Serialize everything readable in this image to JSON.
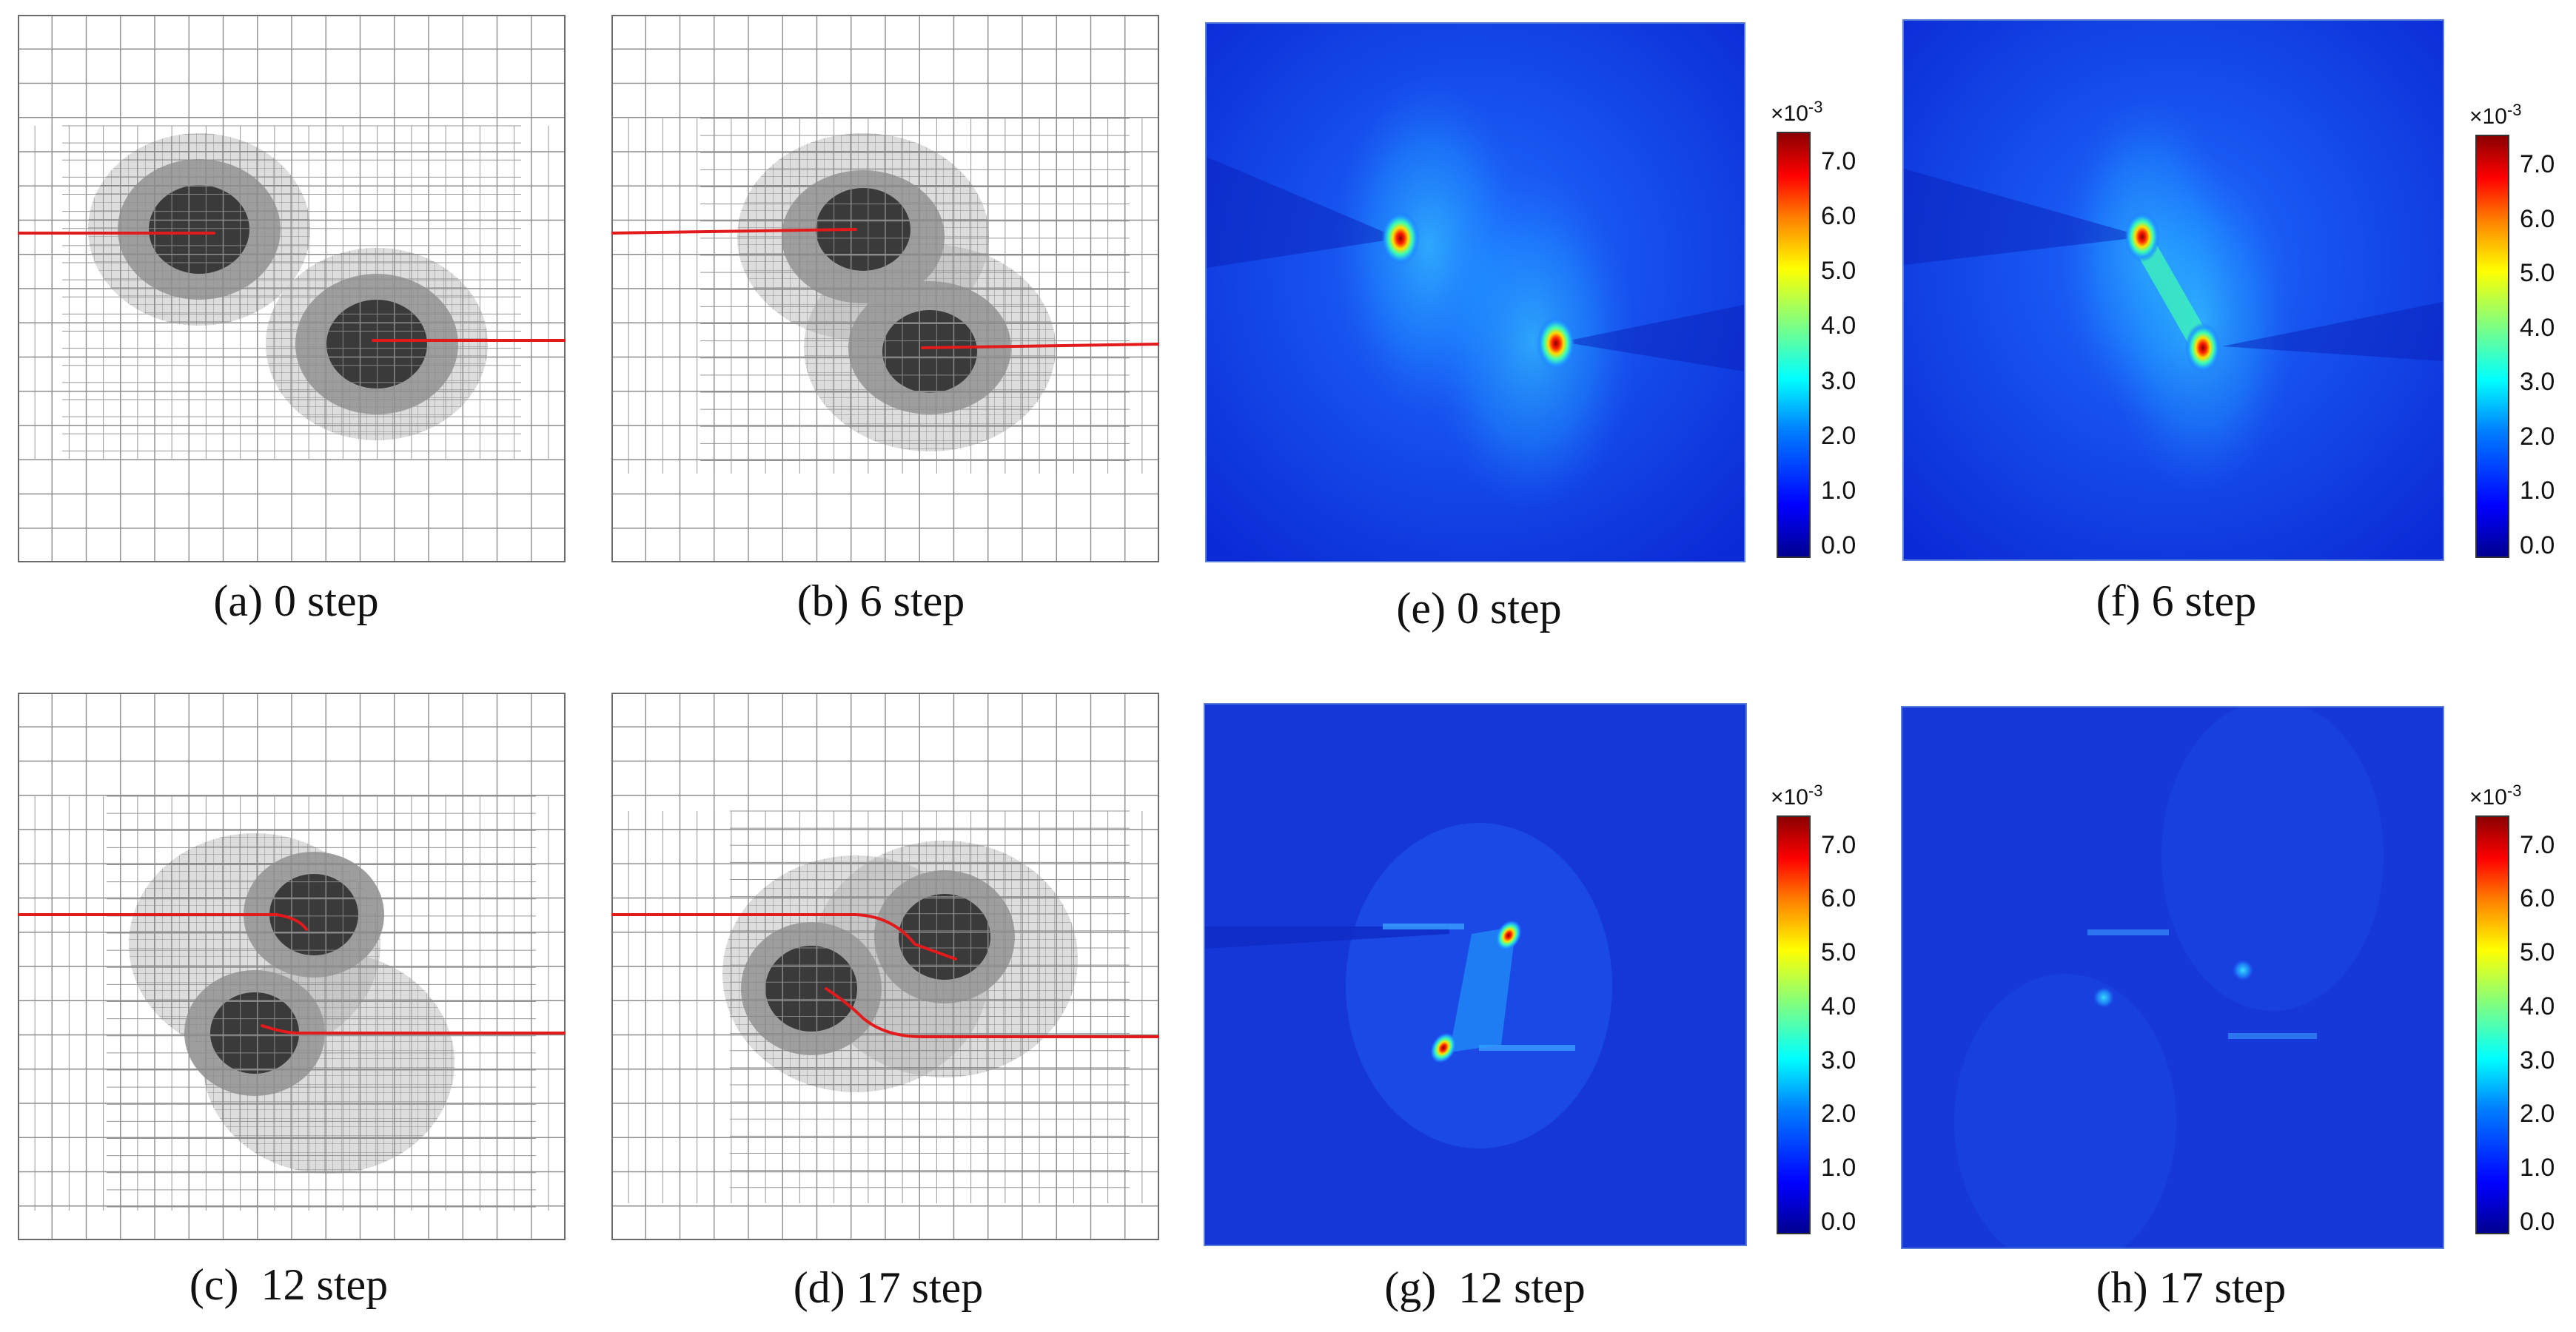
{
  "panels": {
    "a": {
      "caption": "(a) 0 step"
    },
    "b": {
      "caption": "(b) 6 step"
    },
    "c": {
      "caption": "(c)  12 step"
    },
    "d": {
      "caption": "(d) 17 step"
    },
    "e": {
      "caption": "(e) 0 step"
    },
    "f": {
      "caption": "(f) 6 step"
    },
    "g": {
      "caption": "(g)  12 step"
    },
    "h": {
      "caption": "(h) 17 step"
    }
  },
  "colorbar": {
    "multiplier_base": "×10",
    "multiplier_exp": "-3",
    "ticks": [
      "7.0",
      "6.0",
      "5.0",
      "4.0",
      "3.0",
      "2.0",
      "1.0",
      "0.0"
    ]
  },
  "colors": {
    "crack": "#e31a1c",
    "mesh_line": "#8c8c8c",
    "inner_zone": "#3a3a3a",
    "refined_zone": "#9e9e9e",
    "field_background": "#1a3fe0"
  }
}
